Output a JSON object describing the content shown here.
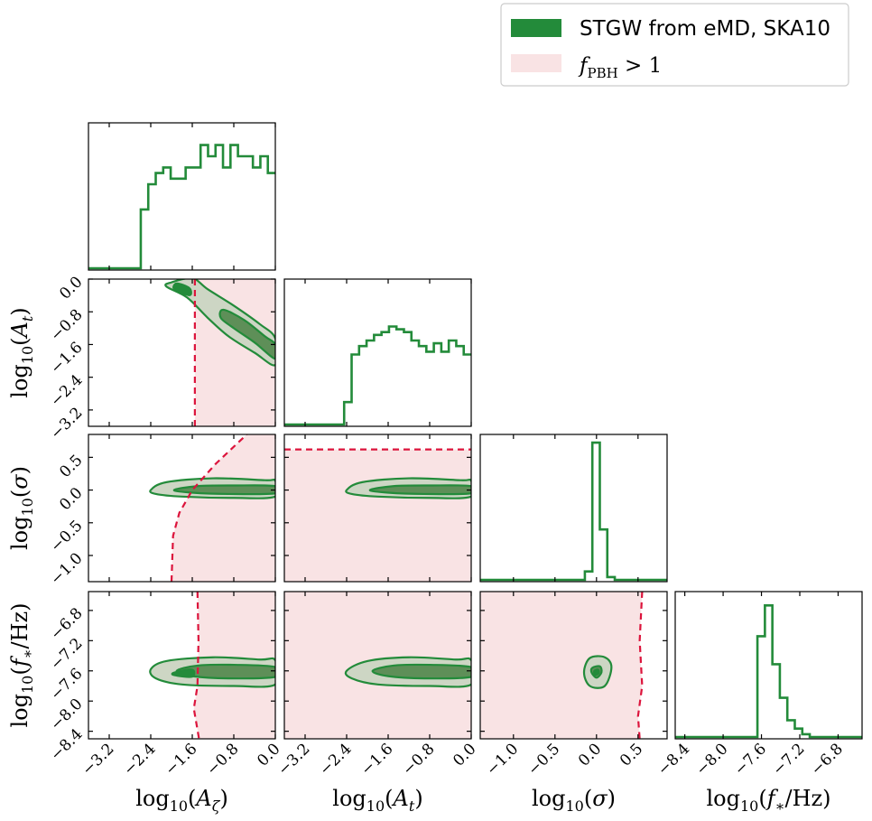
{
  "chart_data": {
    "type": "corner",
    "colors": {
      "posterior": "#238b3a",
      "contour_outer_fill": "#cdd6c4",
      "contour_inner_fill": "#5e8f58",
      "contour_peak_fill": "#238b3a",
      "excluded_fill": "#f9e3e4",
      "excluded_line": "#dc143c"
    },
    "legend": {
      "position": "top-right",
      "entries": [
        {
          "label": "STGW from eMD, SKA10",
          "color": "#238b3a"
        },
        {
          "label": "f_PBH > 1",
          "color": "#f9e3e4"
        }
      ]
    },
    "parameters": [
      {
        "name": "log10(A_zeta)",
        "label": "log₁₀(A_ζ)",
        "range": [
          -3.6,
          0.0
        ],
        "ticks": [
          -3.2,
          -2.4,
          -1.6,
          -0.8,
          0.0
        ],
        "tick_labels": [
          "−3.2",
          "−2.4",
          "−1.6",
          "−0.8",
          "0.0"
        ]
      },
      {
        "name": "log10(A_t)",
        "label": "log₁₀(A_t)",
        "range": [
          -3.6,
          0.0
        ],
        "ticks": [
          -3.2,
          -2.4,
          -1.6,
          -0.8,
          0.0
        ],
        "tick_labels": [
          "−3.2",
          "−2.4",
          "−1.6",
          "−0.8",
          "0.0"
        ]
      },
      {
        "name": "log10(sigma)",
        "label": "log₁₀(σ)",
        "range": [
          -1.4,
          0.85
        ],
        "ticks": [
          -1.0,
          -0.5,
          0.0,
          0.5
        ],
        "tick_labels": [
          "−1.0",
          "−0.5",
          "0.0",
          "0.5"
        ]
      },
      {
        "name": "log10(f_star/Hz)",
        "label": "log₁₀(f₊/Hz)",
        "range": [
          -8.5,
          -6.55
        ],
        "ticks": [
          -8.4,
          -8.0,
          -7.6,
          -7.2,
          -6.8
        ],
        "tick_labels": [
          "−8.4",
          "−8.0",
          "−7.6",
          "−7.2",
          "−6.8"
        ]
      }
    ],
    "marginals": [
      {
        "param": 0,
        "start": -3.6,
        "step": 0.144,
        "heights": [
          0,
          0,
          0,
          0,
          0,
          0,
          0,
          0.42,
          0.6,
          0.68,
          0.72,
          0.64,
          0.64,
          0.72,
          0.72,
          0.88,
          0.8,
          0.88,
          0.72,
          0.88,
          0.8,
          0.8,
          0.72,
          0.8,
          0.68
        ]
      },
      {
        "param": 1,
        "start": -3.6,
        "step": 0.144,
        "heights": [
          0,
          0,
          0,
          0,
          0,
          0,
          0,
          0,
          0.16,
          0.5,
          0.56,
          0.6,
          0.64,
          0.66,
          0.7,
          0.68,
          0.66,
          0.6,
          0.56,
          0.52,
          0.58,
          0.52,
          0.6,
          0.56,
          0.5
        ]
      },
      {
        "param": 2,
        "start": -1.4,
        "step": 0.09,
        "heights": [
          0,
          0,
          0,
          0,
          0,
          0,
          0,
          0,
          0,
          0,
          0,
          0,
          0,
          0,
          0.06,
          0.98,
          0.36,
          0.02,
          0,
          0,
          0,
          0,
          0,
          0,
          0
        ]
      },
      {
        "param": 3,
        "start": -8.5,
        "step": 0.078,
        "heights": [
          0,
          0,
          0,
          0,
          0,
          0,
          0,
          0,
          0,
          0,
          0,
          0.72,
          0.94,
          0.52,
          0.28,
          0.12,
          0.06,
          0.02,
          0,
          0,
          0,
          0,
          0,
          0,
          0
        ]
      }
    ],
    "joint": [
      {
        "x": 0,
        "y": 1,
        "outer": [
          [
            -2.0,
            -0.08
          ],
          [
            -1.6,
            0.02
          ],
          [
            -1.3,
            -0.25
          ],
          [
            -0.8,
            -0.65
          ],
          [
            -0.3,
            -1.1
          ],
          [
            0.0,
            -1.45
          ],
          [
            0.0,
            -2.1
          ],
          [
            -0.4,
            -1.8
          ],
          [
            -0.9,
            -1.4
          ],
          [
            -1.3,
            -0.95
          ],
          [
            -1.7,
            -0.45
          ],
          [
            -2.1,
            -0.18
          ]
        ],
        "inner": [
          [
            -1.0,
            -0.75
          ],
          [
            -0.6,
            -1.0
          ],
          [
            -0.2,
            -1.4
          ],
          [
            0.0,
            -1.6
          ],
          [
            0.0,
            -1.95
          ],
          [
            -0.4,
            -1.55
          ],
          [
            -0.8,
            -1.2
          ],
          [
            -1.05,
            -0.95
          ]
        ],
        "peak": [
          [
            -1.9,
            -0.1
          ],
          [
            -1.65,
            -0.22
          ],
          [
            -1.65,
            -0.4
          ],
          [
            -1.95,
            -0.25
          ]
        ],
        "exclusion": {
          "shade_side": "right",
          "line": [
            [
              -1.55,
              0.0
            ],
            [
              -1.55,
              -3.6
            ]
          ]
        }
      },
      {
        "x": 0,
        "y": 2,
        "outer": [
          [
            -2.4,
            0.0
          ],
          [
            -2.1,
            0.12
          ],
          [
            -1.2,
            0.18
          ],
          [
            -0.2,
            0.15
          ],
          [
            0.0,
            0.14
          ],
          [
            0.0,
            -0.1
          ],
          [
            -0.8,
            -0.12
          ],
          [
            -1.8,
            -0.1
          ],
          [
            -2.3,
            -0.06
          ]
        ],
        "inner": [
          [
            -1.95,
            0.0
          ],
          [
            -1.5,
            0.06
          ],
          [
            -0.8,
            0.07
          ],
          [
            0.0,
            0.06
          ],
          [
            0.0,
            -0.05
          ],
          [
            -0.9,
            -0.06
          ],
          [
            -1.6,
            -0.04
          ]
        ],
        "peak": [],
        "exclusion": {
          "shade_side": "right",
          "line": [
            [
              -2.0,
              -1.4
            ],
            [
              -1.97,
              -0.7
            ],
            [
              -1.85,
              -0.35
            ],
            [
              -1.6,
              0.0
            ],
            [
              -1.15,
              0.4
            ],
            [
              -0.55,
              0.85
            ]
          ]
        }
      },
      {
        "x": 1,
        "y": 2,
        "outer": [
          [
            -2.4,
            0.0
          ],
          [
            -2.1,
            0.12
          ],
          [
            -1.2,
            0.18
          ],
          [
            -0.2,
            0.15
          ],
          [
            0.0,
            0.14
          ],
          [
            0.0,
            -0.1
          ],
          [
            -0.8,
            -0.12
          ],
          [
            -1.8,
            -0.1
          ],
          [
            -2.3,
            -0.06
          ]
        ],
        "inner": [
          [
            -1.95,
            0.0
          ],
          [
            -1.5,
            0.06
          ],
          [
            -0.8,
            0.07
          ],
          [
            0.0,
            0.06
          ],
          [
            0.0,
            -0.05
          ],
          [
            -0.9,
            -0.06
          ],
          [
            -1.6,
            -0.04
          ]
        ],
        "peak": [],
        "exclusion": {
          "shade_side": "below",
          "line": [
            [
              -3.6,
              0.62
            ],
            [
              0.0,
              0.62
            ]
          ]
        }
      },
      {
        "x": 0,
        "y": 3,
        "outer": [
          [
            -2.4,
            -7.58
          ],
          [
            -2.1,
            -7.47
          ],
          [
            -1.2,
            -7.42
          ],
          [
            -0.3,
            -7.45
          ],
          [
            0.0,
            -7.46
          ],
          [
            0.0,
            -7.78
          ],
          [
            -0.8,
            -7.8
          ],
          [
            -1.8,
            -7.78
          ],
          [
            -2.3,
            -7.7
          ]
        ],
        "inner": [
          [
            -1.9,
            -7.6
          ],
          [
            -1.5,
            -7.53
          ],
          [
            -0.8,
            -7.52
          ],
          [
            0.0,
            -7.55
          ],
          [
            0.0,
            -7.68
          ],
          [
            -0.9,
            -7.7
          ],
          [
            -1.6,
            -7.67
          ]
        ],
        "peak": [
          [
            -1.95,
            -7.62
          ],
          [
            -1.6,
            -7.58
          ],
          [
            -1.6,
            -7.68
          ],
          [
            -1.95,
            -7.66
          ]
        ],
        "exclusion": {
          "shade_side": "right",
          "line": [
            [
              -1.5,
              -6.55
            ],
            [
              -1.48,
              -7.2
            ],
            [
              -1.5,
              -7.8
            ],
            [
              -1.57,
              -8.1
            ],
            [
              -1.47,
              -8.5
            ]
          ]
        }
      },
      {
        "x": 1,
        "y": 3,
        "outer": [
          [
            -2.4,
            -7.6
          ],
          [
            -2.0,
            -7.47
          ],
          [
            -1.2,
            -7.42
          ],
          [
            -0.3,
            -7.45
          ],
          [
            0.0,
            -7.46
          ],
          [
            0.0,
            -7.78
          ],
          [
            -0.8,
            -7.8
          ],
          [
            -1.8,
            -7.78
          ],
          [
            -2.3,
            -7.7
          ]
        ],
        "inner": [
          [
            -1.9,
            -7.6
          ],
          [
            -1.5,
            -7.53
          ],
          [
            -0.8,
            -7.52
          ],
          [
            0.0,
            -7.55
          ],
          [
            0.0,
            -7.68
          ],
          [
            -0.9,
            -7.7
          ],
          [
            -1.6,
            -7.67
          ]
        ],
        "peak": [],
        "exclusion": {
          "shade_side": "left",
          "line": [
            [
              0.55,
              -6.55
            ],
            [
              0.52,
              -7.2
            ],
            [
              0.55,
              -7.8
            ],
            [
              0.5,
              -8.2
            ],
            [
              0.52,
              -8.5
            ]
          ]
        }
      },
      {
        "x": 2,
        "y": 3,
        "outer": [
          [
            -0.08,
            -7.43
          ],
          [
            0.1,
            -7.42
          ],
          [
            0.18,
            -7.55
          ],
          [
            0.1,
            -7.8
          ],
          [
            -0.08,
            -7.8
          ],
          [
            -0.15,
            -7.62
          ]
        ],
        "inner": [
          [
            -0.05,
            -7.56
          ],
          [
            0.04,
            -7.54
          ],
          [
            0.06,
            -7.62
          ],
          [
            0.0,
            -7.69
          ],
          [
            -0.06,
            -7.62
          ]
        ],
        "peak": [
          [
            -0.03,
            -7.6
          ],
          [
            0.02,
            -7.58
          ],
          [
            0.03,
            -7.63
          ],
          [
            -0.02,
            -7.66
          ]
        ],
        "exclusion": {
          "shade_side": "left",
          "line": [
            [
              0.55,
              -6.55
            ],
            [
              0.52,
              -7.2
            ],
            [
              0.55,
              -7.8
            ],
            [
              0.5,
              -8.2
            ],
            [
              0.52,
              -8.5
            ]
          ]
        }
      }
    ]
  }
}
